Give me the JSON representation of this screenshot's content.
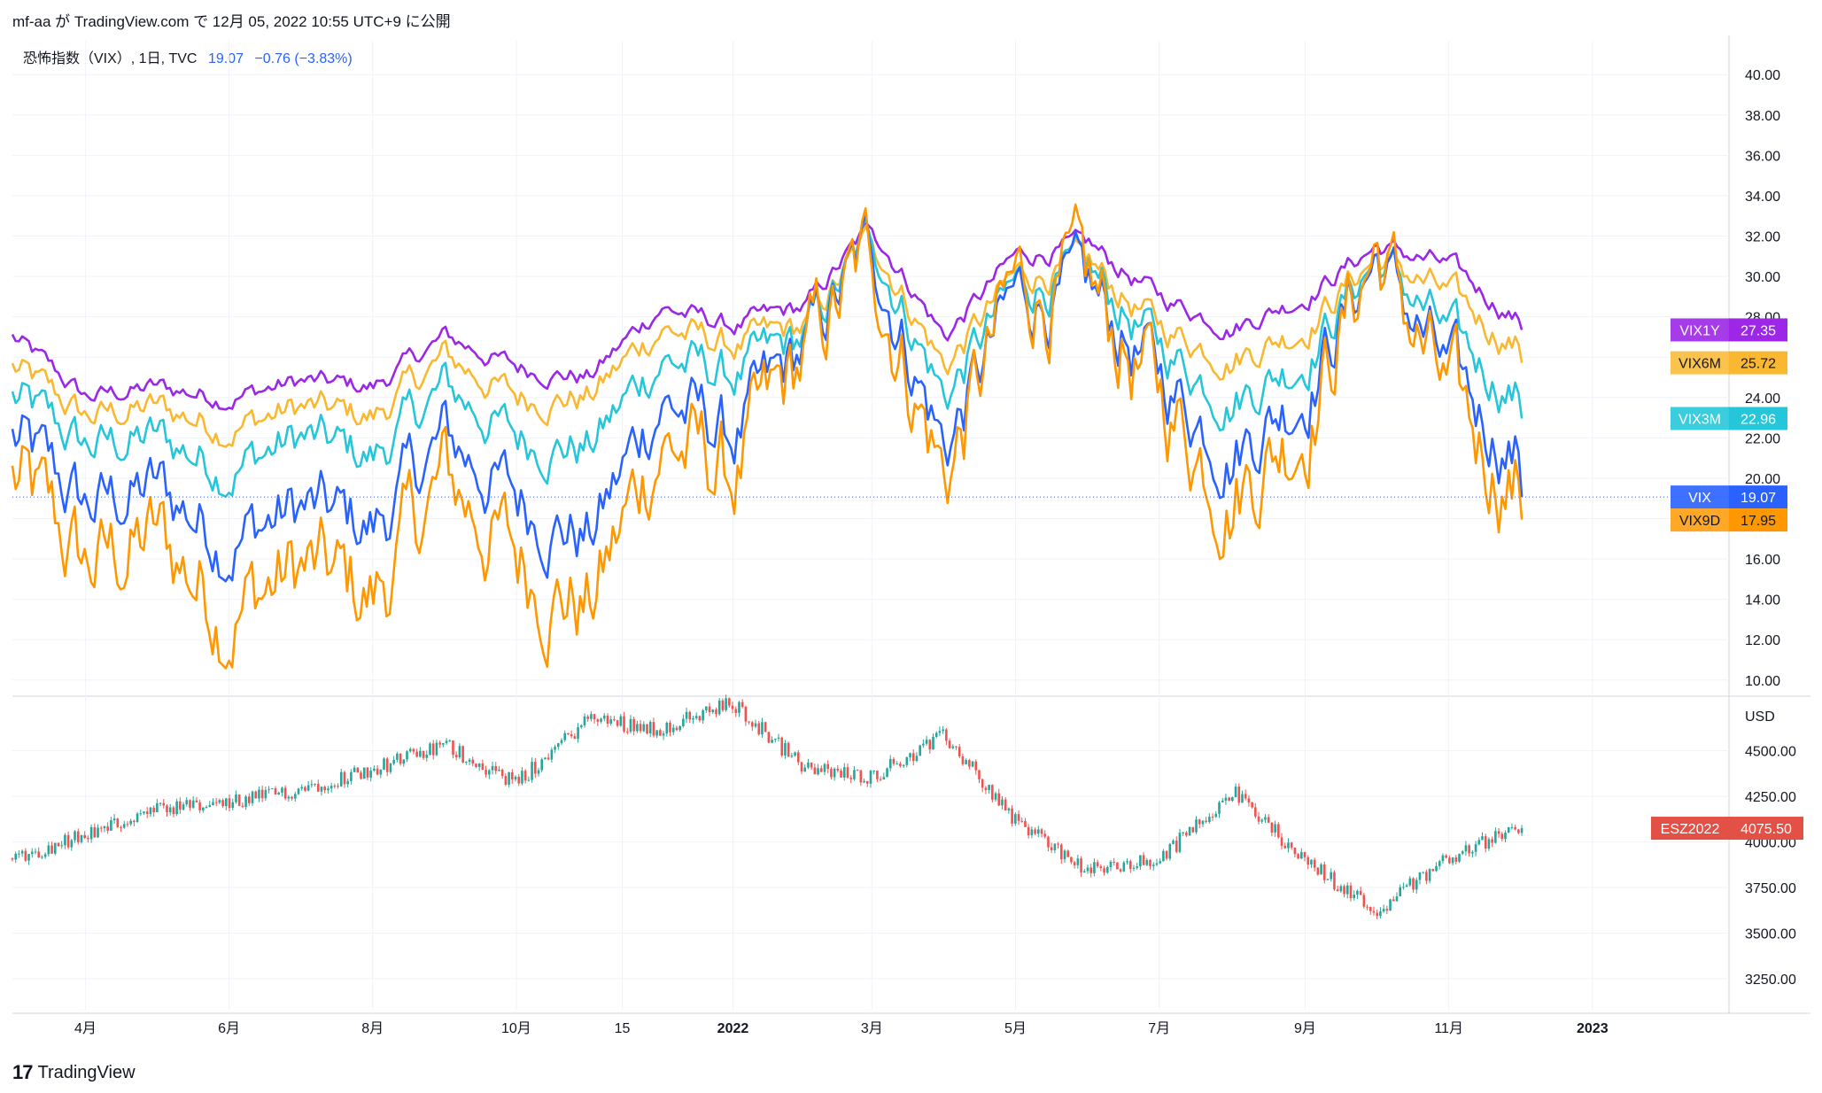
{
  "header": {
    "publisher": "mf-aa が TradingView.com で 12月 05, 2022 10:55 UTC+9 に公開"
  },
  "legend": {
    "symbol": "恐怖指数（VIX）, 1日, TVC",
    "last": "19.07",
    "change": "−0.76 (−3.83%)"
  },
  "footer": {
    "brand": "TradingView",
    "logo": "tradingview-logo"
  },
  "colors": {
    "VIX": "#2962ff",
    "VIX9D": "#ff9800",
    "VIX3M": "#26c6da",
    "VIX6M": "#f9b82f",
    "VIX1Y": "#9c27e6",
    "up": "#26a69a",
    "down": "#ef5350",
    "grid": "#f0f3fa",
    "es_tag": "#e35046"
  },
  "chart_data": [
    {
      "type": "line",
      "panel": "top",
      "yticks": [
        "40.00",
        "38.00",
        "36.00",
        "34.00",
        "32.00",
        "30.00",
        "28.00",
        "26.00",
        "24.00",
        "22.00",
        "20.00",
        "18.00",
        "16.00",
        "14.00",
        "12.00",
        "10.00"
      ],
      "ylim": [
        9.2,
        40.8
      ],
      "x": [
        "2021-03-01",
        "2021-04-01",
        "2021-05-01",
        "2021-06-01",
        "2021-07-01",
        "2021-08-01",
        "2021-09-01",
        "2021-10-01",
        "2021-11-01",
        "2021-12-01",
        "2022-01-01",
        "2022-02-01",
        "2022-03-01",
        "2022-04-01",
        "2022-05-01",
        "2022-06-01",
        "2022-07-01",
        "2022-08-01",
        "2022-09-01",
        "2022-10-01",
        "2022-11-01",
        "2022-12-01"
      ],
      "series": [
        {
          "name": "VIX1Y",
          "last": "27.35",
          "values": [
            27.0,
            24.0,
            24.5,
            24.0,
            24.8,
            24.5,
            27.0,
            25.5,
            25.0,
            28.5,
            27.5,
            28.5,
            32.5,
            27.0,
            31.0,
            31.5,
            29.0,
            27.5,
            29.0,
            31.5,
            30.5,
            27.8
          ]
        },
        {
          "name": "VIX6M",
          "last": "25.72",
          "values": [
            25.5,
            23.0,
            23.5,
            22.5,
            23.5,
            23.0,
            26.0,
            24.0,
            24.0,
            27.5,
            26.5,
            27.5,
            32.0,
            25.5,
            30.0,
            30.5,
            27.5,
            26.0,
            27.5,
            31.0,
            29.0,
            26.5
          ]
        },
        {
          "name": "VIX3M",
          "last": "22.96",
          "values": [
            24.0,
            21.5,
            22.0,
            20.5,
            22.0,
            21.0,
            24.5,
            22.0,
            21.5,
            26.0,
            25.0,
            27.0,
            32.0,
            24.0,
            29.5,
            30.0,
            26.5,
            24.0,
            26.0,
            31.0,
            27.0,
            24.0
          ]
        },
        {
          "name": "VIX",
          "last": "19.07",
          "values": [
            22.0,
            18.5,
            19.5,
            17.0,
            18.5,
            17.5,
            22.0,
            19.0,
            17.0,
            24.0,
            22.0,
            26.5,
            31.5,
            21.5,
            29.0,
            29.0,
            25.0,
            21.5,
            24.5,
            31.0,
            25.0,
            21.0
          ]
        },
        {
          "name": "VIX9D",
          "last": "17.95",
          "values": [
            20.0,
            15.5,
            17.0,
            13.5,
            15.5,
            14.0,
            20.0,
            16.0,
            13.5,
            22.0,
            20.0,
            26.0,
            31.0,
            20.0,
            29.5,
            29.0,
            24.0,
            19.5,
            23.0,
            31.5,
            23.5,
            19.5
          ]
        }
      ]
    },
    {
      "type": "candlestick",
      "panel": "bottom",
      "unit": "USD",
      "series_name": "ESZ2022",
      "last": "4075.50",
      "yticks": [
        "4500.00",
        "4250.00",
        "4000.00",
        "3750.00",
        "3500.00",
        "3250.00"
      ],
      "ylim": [
        3080,
        4780
      ],
      "x": [
        "2021-03-01",
        "2021-04-01",
        "2021-05-01",
        "2021-06-01",
        "2021-07-01",
        "2021-08-01",
        "2021-09-01",
        "2021-10-01",
        "2021-11-01",
        "2021-12-01",
        "2022-01-01",
        "2022-02-01",
        "2022-03-01",
        "2022-04-01",
        "2022-05-01",
        "2022-06-01",
        "2022-07-01",
        "2022-08-01",
        "2022-09-01",
        "2022-10-01",
        "2022-11-01",
        "2022-12-01"
      ],
      "values": [
        3910,
        4040,
        4170,
        4210,
        4290,
        4400,
        4530,
        4320,
        4680,
        4620,
        4760,
        4400,
        4360,
        4580,
        4120,
        3840,
        3900,
        4280,
        3900,
        3620,
        3920,
        4075
      ]
    }
  ],
  "xaxis": {
    "labels": [
      {
        "text": "4月",
        "date": "2021-04-01"
      },
      {
        "text": "6月",
        "date": "2021-06-01"
      },
      {
        "text": "8月",
        "date": "2021-08-01"
      },
      {
        "text": "10月",
        "date": "2021-10-01"
      },
      {
        "text": "15",
        "date": "2021-11-15"
      },
      {
        "text": "2022",
        "date": "2022-01-01",
        "bold": true
      },
      {
        "text": "3月",
        "date": "2022-03-01"
      },
      {
        "text": "5月",
        "date": "2022-05-01"
      },
      {
        "text": "7月",
        "date": "2022-07-01"
      },
      {
        "text": "9月",
        "date": "2022-09-01"
      },
      {
        "text": "11月",
        "date": "2022-11-01"
      },
      {
        "text": "2023",
        "date": "2023-01-01",
        "bold": true
      }
    ]
  }
}
